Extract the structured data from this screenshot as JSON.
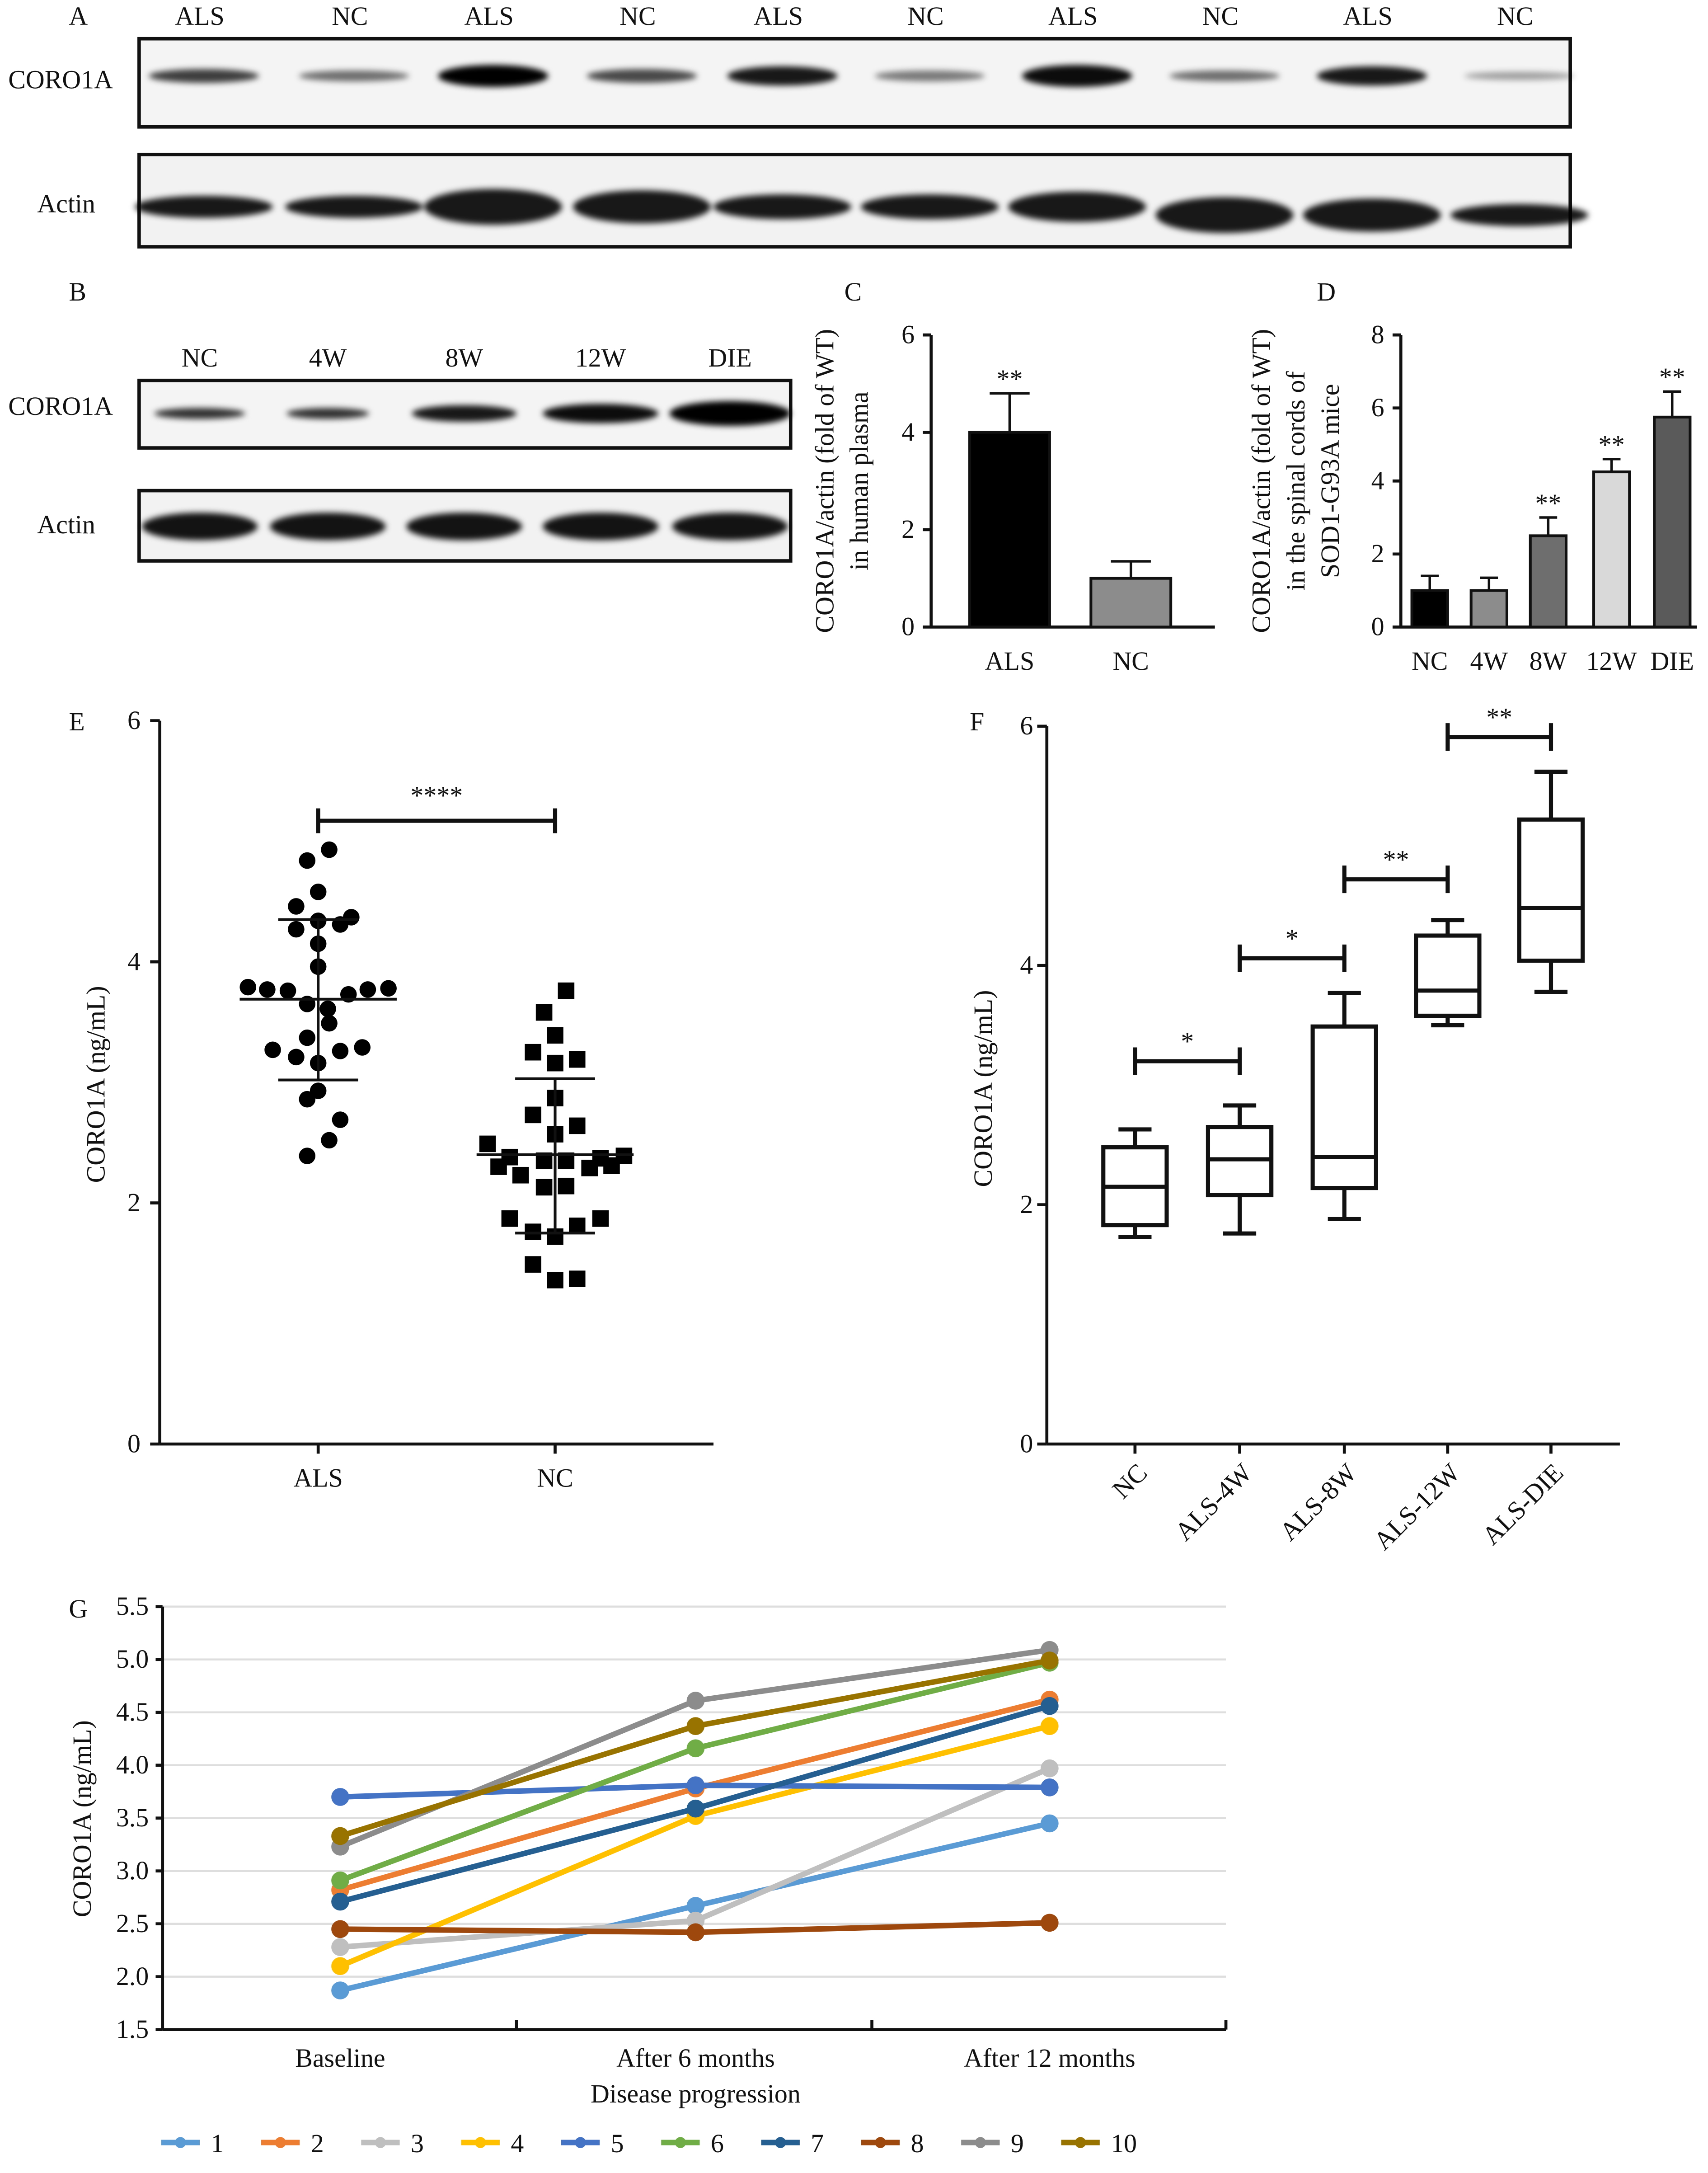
{
  "panels": {
    "A": {
      "label": "A",
      "lanes": [
        "ALS",
        "NC",
        "ALS",
        "NC",
        "ALS",
        "NC",
        "ALS",
        "NC",
        "ALS",
        "NC"
      ],
      "rows": [
        "CORO1A",
        "Actin"
      ]
    },
    "B": {
      "label": "B",
      "lanes": [
        "NC",
        "4W",
        "8W",
        "12W",
        "DIE"
      ],
      "rows": [
        "CORO1A",
        "Actin"
      ]
    },
    "C": {
      "label": "C"
    },
    "D": {
      "label": "D"
    },
    "E": {
      "label": "E"
    },
    "F": {
      "label": "F"
    },
    "G": {
      "label": "G"
    }
  },
  "chart_data": [
    {
      "panel": "C",
      "type": "bar",
      "categories": [
        "ALS",
        "NC"
      ],
      "values": [
        4.0,
        1.0
      ],
      "error_upper": [
        4.8,
        1.35
      ],
      "significance": [
        "**",
        ""
      ],
      "ylabel_lines": [
        "CORO1A/actin (fold of WT)",
        "in human plasma"
      ],
      "ylim": [
        0,
        6
      ],
      "yticks": [
        "0",
        "2",
        "4",
        "6"
      ],
      "colors": [
        "#000000",
        "#8c8c8c"
      ]
    },
    {
      "panel": "D",
      "type": "bar",
      "categories": [
        "NC",
        "4W",
        "8W",
        "12W",
        "DIE"
      ],
      "values": [
        1.0,
        1.0,
        2.5,
        4.25,
        5.75
      ],
      "error_upper": [
        1.4,
        1.35,
        3.0,
        4.6,
        6.45
      ],
      "significance": [
        "",
        "",
        "**",
        "**",
        "**"
      ],
      "ylabel_lines": [
        "CORO1A/actin (fold of WT)",
        "in the spinal cords of",
        "SOD1-G93A mice"
      ],
      "ylim": [
        0,
        8
      ],
      "yticks": [
        "0",
        "2",
        "4",
        "6",
        "8"
      ],
      "colors": [
        "#000000",
        "#8c8c8c",
        "#6e6e6e",
        "#d9d9d9",
        "#5a5a5a"
      ]
    },
    {
      "panel": "E",
      "type": "scatter",
      "ylabel": "CORO1A (ng/mL)",
      "ylim": [
        0,
        6
      ],
      "yticks": [
        "0",
        "2",
        "4",
        "6"
      ],
      "categories": [
        "ALS",
        "NC"
      ],
      "groups": [
        {
          "name": "ALS",
          "marker": "circle",
          "mean": 3.69,
          "sd_upper": 4.35,
          "sd_lower": 3.02,
          "values": [
            4.93,
            4.84,
            4.58,
            4.46,
            4.37,
            4.31,
            4.27,
            4.34,
            4.15,
            3.96,
            3.79,
            3.77,
            3.76,
            3.73,
            3.77,
            3.78,
            3.65,
            3.61,
            3.49,
            3.37,
            3.27,
            3.21,
            3.26,
            3.29,
            3.16,
            2.93,
            2.86,
            2.69,
            2.52,
            2.39
          ]
        },
        {
          "name": "NC",
          "marker": "square",
          "mean": 2.4,
          "sd_upper": 3.03,
          "sd_lower": 1.75,
          "values": [
            3.76,
            3.58,
            3.39,
            3.25,
            3.16,
            3.19,
            2.87,
            2.73,
            2.64,
            2.57,
            2.49,
            2.38,
            2.35,
            2.35,
            2.37,
            2.39,
            2.3,
            2.23,
            2.29,
            2.31,
            2.13,
            2.14,
            1.87,
            1.76,
            1.81,
            1.87,
            1.72,
            1.49,
            1.36,
            1.37
          ]
        }
      ],
      "comparison": {
        "from": "ALS",
        "to": "NC",
        "y": 5.17,
        "label": "****"
      }
    },
    {
      "panel": "F",
      "type": "box",
      "ylabel": "CORO1A (ng/mL)",
      "ylim": [
        0,
        6
      ],
      "yticks": [
        "0",
        "2",
        "4",
        "6"
      ],
      "categories": [
        "NC",
        "ALS-4W",
        "ALS-8W",
        "ALS-12W",
        "ALS-DIE"
      ],
      "boxes": [
        {
          "min": 1.73,
          "q1": 1.83,
          "median": 2.15,
          "q3": 2.48,
          "max": 2.63
        },
        {
          "min": 1.76,
          "q1": 2.08,
          "median": 2.38,
          "q3": 2.65,
          "max": 2.83
        },
        {
          "min": 1.88,
          "q1": 2.14,
          "median": 2.4,
          "q3": 3.49,
          "max": 3.77
        },
        {
          "min": 3.5,
          "q1": 3.58,
          "median": 3.79,
          "q3": 4.25,
          "max": 4.38
        },
        {
          "min": 3.78,
          "q1": 4.04,
          "median": 4.48,
          "q3": 5.22,
          "max": 5.62
        }
      ],
      "comparisons": [
        {
          "from": 0,
          "to": 1,
          "y": 3.2,
          "label": "*"
        },
        {
          "from": 1,
          "to": 2,
          "y": 4.06,
          "label": "*"
        },
        {
          "from": 2,
          "to": 3,
          "y": 4.72,
          "label": "**"
        },
        {
          "from": 3,
          "to": 4,
          "y": 5.91,
          "label": "**"
        }
      ]
    },
    {
      "panel": "G",
      "type": "line",
      "ylabel": "CORO1A (ng/mL)",
      "xlabel": "Disease progression",
      "categories": [
        "Baseline",
        "After 6 months",
        "After 12 months"
      ],
      "ylim": [
        1.5,
        5.5
      ],
      "yticks": [
        "1.5",
        "2.0",
        "2.5",
        "3.0",
        "3.5",
        "4.0",
        "4.5",
        "5.0",
        "5.5"
      ],
      "grid": true,
      "legend_position": "bottom",
      "series": [
        {
          "name": "1",
          "color": "#5b9bd5",
          "values": [
            1.87,
            2.67,
            3.45
          ]
        },
        {
          "name": "2",
          "color": "#ed7d31",
          "values": [
            2.82,
            3.78,
            4.62
          ]
        },
        {
          "name": "3",
          "color": "#bfbfbf",
          "values": [
            2.28,
            2.53,
            3.97
          ]
        },
        {
          "name": "4",
          "color": "#ffc000",
          "values": [
            2.1,
            3.52,
            4.37
          ]
        },
        {
          "name": "5",
          "color": "#4472c4",
          "values": [
            3.7,
            3.81,
            3.79
          ]
        },
        {
          "name": "6",
          "color": "#70ad47",
          "values": [
            2.91,
            4.16,
            4.97
          ]
        },
        {
          "name": "7",
          "color": "#255e91",
          "values": [
            2.71,
            3.59,
            4.56
          ]
        },
        {
          "name": "8",
          "color": "#9e480e",
          "values": [
            2.45,
            2.42,
            2.51
          ]
        },
        {
          "name": "9",
          "color": "#8c8c8c",
          "values": [
            3.23,
            4.61,
            5.09
          ]
        },
        {
          "name": "10",
          "color": "#997300",
          "values": [
            3.33,
            4.37,
            4.99
          ]
        }
      ]
    }
  ]
}
